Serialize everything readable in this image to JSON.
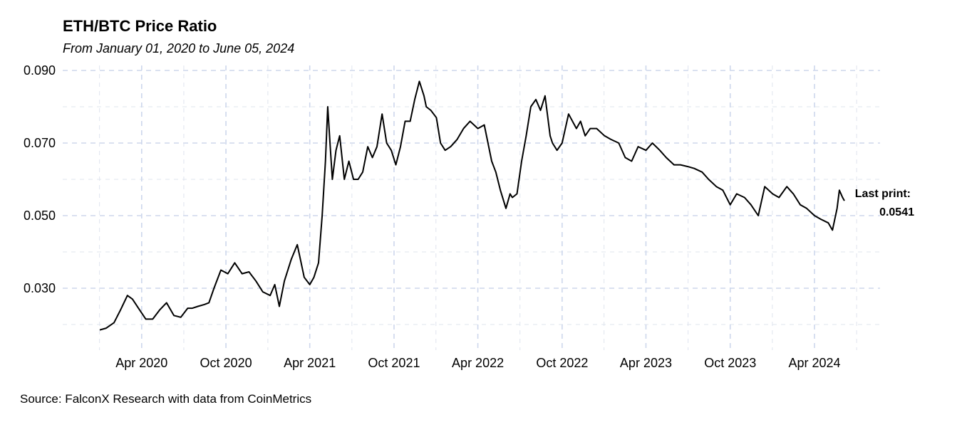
{
  "chart_data": {
    "type": "line",
    "title": "ETH/BTC Price Ratio",
    "subtitle": "From January 01, 2020 to June 05, 2024",
    "source": "Source: FalconX Research with data from CoinMetrics",
    "xlabel": "",
    "ylabel": "",
    "x_range": [
      "2020-01-01",
      "2024-06-05"
    ],
    "ylim": [
      0.016,
      0.091
    ],
    "y_ticks": [
      0.03,
      0.05,
      0.07,
      0.09
    ],
    "y_tick_labels": [
      "0.030",
      "0.050",
      "0.070",
      "0.090"
    ],
    "x_ticks": [
      "2020-04-01",
      "2020-10-01",
      "2021-04-01",
      "2021-10-01",
      "2022-04-01",
      "2022-10-01",
      "2023-04-01",
      "2023-10-01",
      "2024-04-01"
    ],
    "x_tick_labels": [
      "Apr 2020",
      "Oct 2020",
      "Apr 2021",
      "Oct 2021",
      "Apr 2022",
      "Oct 2022",
      "Apr 2023",
      "Oct 2023",
      "Apr 2024"
    ],
    "grid": true,
    "annotation": {
      "label": "Last print:",
      "value": "0.0541"
    },
    "series": [
      {
        "color": "#000000",
        "x": [
          "2020-01-01",
          "2020-01-15",
          "2020-02-01",
          "2020-02-15",
          "2020-03-01",
          "2020-03-12",
          "2020-03-25",
          "2020-04-10",
          "2020-04-25",
          "2020-05-10",
          "2020-05-25",
          "2020-06-10",
          "2020-06-25",
          "2020-07-10",
          "2020-07-20",
          "2020-08-01",
          "2020-08-15",
          "2020-08-25",
          "2020-09-05",
          "2020-09-20",
          "2020-10-05",
          "2020-10-20",
          "2020-11-05",
          "2020-11-20",
          "2020-12-05",
          "2020-12-20",
          "2021-01-05",
          "2021-01-15",
          "2021-01-25",
          "2021-02-05",
          "2021-02-20",
          "2021-03-05",
          "2021-03-20",
          "2021-04-01",
          "2021-04-10",
          "2021-04-20",
          "2021-04-28",
          "2021-05-05",
          "2021-05-10",
          "2021-05-15",
          "2021-05-20",
          "2021-05-28",
          "2021-06-05",
          "2021-06-15",
          "2021-06-25",
          "2021-07-05",
          "2021-07-15",
          "2021-07-25",
          "2021-08-05",
          "2021-08-15",
          "2021-08-25",
          "2021-09-05",
          "2021-09-15",
          "2021-09-25",
          "2021-10-05",
          "2021-10-15",
          "2021-10-25",
          "2021-11-05",
          "2021-11-15",
          "2021-11-25",
          "2021-12-05",
          "2021-12-10",
          "2021-12-20",
          "2022-01-01",
          "2022-01-10",
          "2022-01-20",
          "2022-02-01",
          "2022-02-15",
          "2022-03-01",
          "2022-03-15",
          "2022-04-01",
          "2022-04-15",
          "2022-05-01",
          "2022-05-10",
          "2022-05-20",
          "2022-06-01",
          "2022-06-10",
          "2022-06-15",
          "2022-06-25",
          "2022-07-05",
          "2022-07-15",
          "2022-07-25",
          "2022-08-05",
          "2022-08-15",
          "2022-08-25",
          "2022-09-05",
          "2022-09-10",
          "2022-09-20",
          "2022-10-01",
          "2022-10-15",
          "2022-11-01",
          "2022-11-10",
          "2022-11-20",
          "2022-12-01",
          "2022-12-15",
          "2023-01-01",
          "2023-01-15",
          "2023-02-01",
          "2023-02-15",
          "2023-03-01",
          "2023-03-15",
          "2023-04-01",
          "2023-04-15",
          "2023-05-01",
          "2023-05-15",
          "2023-06-01",
          "2023-06-15",
          "2023-07-01",
          "2023-07-15",
          "2023-08-01",
          "2023-08-15",
          "2023-09-01",
          "2023-09-15",
          "2023-10-01",
          "2023-10-15",
          "2023-11-01",
          "2023-11-15",
          "2023-12-01",
          "2023-12-15",
          "2024-01-01",
          "2024-01-15",
          "2024-02-01",
          "2024-02-15",
          "2024-03-01",
          "2024-03-15",
          "2024-04-01",
          "2024-04-15",
          "2024-05-01",
          "2024-05-10",
          "2024-05-20",
          "2024-05-25",
          "2024-06-01",
          "2024-06-05"
        ],
        "y": [
          0.0185,
          0.019,
          0.0205,
          0.024,
          0.028,
          0.027,
          0.0245,
          0.0215,
          0.0215,
          0.024,
          0.026,
          0.0225,
          0.022,
          0.0245,
          0.0245,
          0.025,
          0.0255,
          0.026,
          0.03,
          0.035,
          0.034,
          0.037,
          0.034,
          0.0345,
          0.032,
          0.029,
          0.028,
          0.031,
          0.025,
          0.032,
          0.038,
          0.042,
          0.033,
          0.031,
          0.033,
          0.037,
          0.05,
          0.065,
          0.08,
          0.07,
          0.06,
          0.068,
          0.072,
          0.06,
          0.065,
          0.06,
          0.06,
          0.062,
          0.069,
          0.066,
          0.069,
          0.078,
          0.07,
          0.068,
          0.064,
          0.069,
          0.076,
          0.076,
          0.082,
          0.087,
          0.083,
          0.08,
          0.079,
          0.077,
          0.07,
          0.068,
          0.069,
          0.071,
          0.074,
          0.076,
          0.074,
          0.075,
          0.065,
          0.062,
          0.057,
          0.052,
          0.056,
          0.055,
          0.056,
          0.065,
          0.072,
          0.08,
          0.082,
          0.079,
          0.083,
          0.072,
          0.07,
          0.068,
          0.07,
          0.078,
          0.074,
          0.076,
          0.072,
          0.074,
          0.074,
          0.072,
          0.071,
          0.07,
          0.066,
          0.065,
          0.069,
          0.068,
          0.07,
          0.068,
          0.066,
          0.064,
          0.064,
          0.0635,
          0.063,
          0.062,
          0.06,
          0.058,
          0.057,
          0.053,
          0.056,
          0.055,
          0.053,
          0.05,
          0.058,
          0.056,
          0.055,
          0.058,
          0.056,
          0.053,
          0.052,
          0.05,
          0.049,
          0.048,
          0.046,
          0.052,
          0.057,
          0.055,
          0.0541
        ]
      }
    ]
  }
}
